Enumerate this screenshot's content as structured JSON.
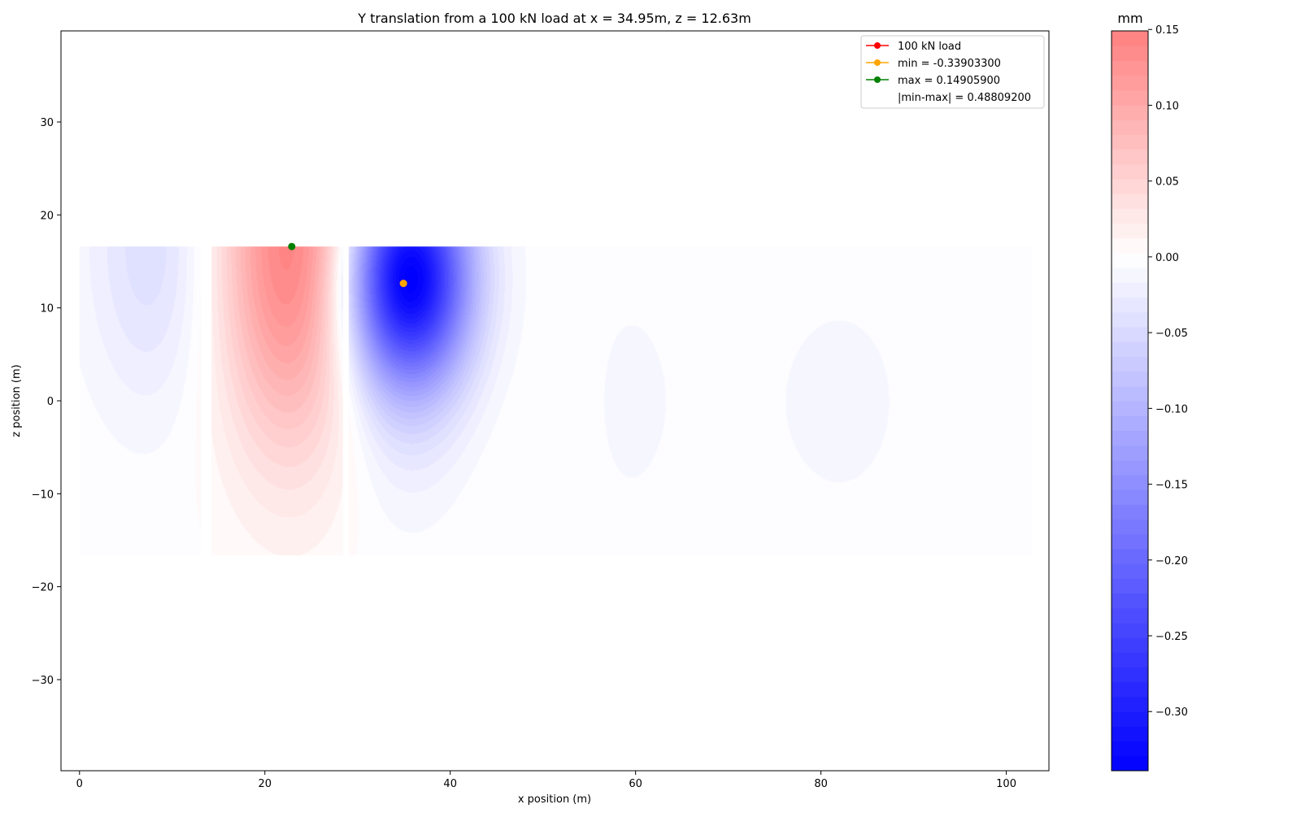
{
  "chart_data": {
    "type": "contour",
    "title": "Y translation from a 100 kN load at x = 34.95m, z = 12.63m",
    "xlabel": "x position (m)",
    "ylabel": "z position (m)",
    "xlim": [
      -2.0,
      104.6
    ],
    "ylim": [
      -39.8,
      39.8
    ],
    "x_ticks": [
      0,
      20,
      40,
      60,
      80,
      100
    ],
    "y_ticks": [
      -30,
      -20,
      -10,
      0,
      10,
      20,
      30
    ],
    "field_extent": {
      "x": [
        0,
        102.7
      ],
      "z": [
        -16.6,
        16.6
      ]
    },
    "load_point": {
      "x": 34.95,
      "z": 12.63,
      "label": "100 kN load",
      "color": "#ff0000"
    },
    "min_point": {
      "x": 34.95,
      "z": 12.63,
      "value": -0.339033,
      "label": "min = -0.33903300",
      "color": "#ffa500"
    },
    "max_point": {
      "x": 22.9,
      "z": 16.6,
      "value": 0.149059,
      "label": "max = 0.14905900",
      "color": "#008000"
    },
    "range_label": "|min-max| = 0.48809200",
    "legend": {
      "placement": "top-right",
      "entries": [
        "100 kN load",
        "min = -0.33903300",
        "max = 0.14905900",
        "|min-max| = 0.48809200"
      ]
    },
    "colorbar": {
      "title": "mm",
      "min": -0.339033,
      "max": 0.149059,
      "ticks": [
        0.15,
        0.1,
        0.05,
        0.0,
        -0.05,
        -0.1,
        -0.15,
        -0.2,
        -0.25,
        -0.3
      ],
      "tick_labels": [
        "0.15",
        "0.10",
        "0.05",
        "0.00",
        "−0.05",
        "−0.10",
        "−0.15",
        "−0.20",
        "−0.25",
        "−0.30"
      ],
      "levels": 50,
      "colormap": [
        "#0000ff",
        "#ffffff",
        "#ff8080"
      ]
    },
    "displacement_lobes": [
      {
        "x": 8.0,
        "z": 16.6,
        "amplitude": -0.045,
        "sx": 5.0,
        "sz": 12.0
      },
      {
        "x": 22.9,
        "z": 16.6,
        "amplitude": 0.149,
        "sx": 5.5,
        "sz": 15.0
      },
      {
        "x": 35.5,
        "z": 13.5,
        "amplitude": -0.339,
        "sx": 4.6,
        "sz": 8.0
      },
      {
        "x": 35.0,
        "z": 2.0,
        "amplitude": -0.03,
        "sx": 5.0,
        "sz": 10.0
      },
      {
        "x": 57.0,
        "z": 0.0,
        "amplitude": -0.008,
        "sx": 7.0,
        "sz": 18.0
      },
      {
        "x": 82.0,
        "z": 0.0,
        "amplitude": -0.008,
        "sx": 11.0,
        "sz": 18.0
      },
      {
        "x": 47.0,
        "z": 0.0,
        "amplitude": 0.005,
        "sx": 6.0,
        "sz": 20.0
      }
    ],
    "gap_bands_x": [
      [
        13.0,
        14.2
      ],
      [
        28.4,
        29.0
      ]
    ]
  }
}
